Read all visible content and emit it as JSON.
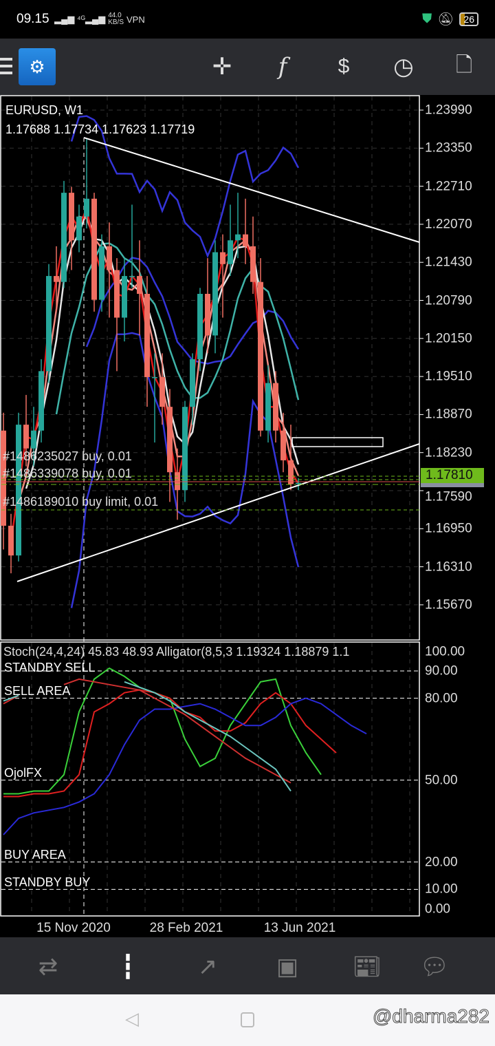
{
  "status_bar": {
    "time": "09.15",
    "net_speed": "44.0",
    "net_unit": "KB/S",
    "vpn": "VPN",
    "battery": "26"
  },
  "toolbar": {
    "icons": [
      "menu-icon",
      "app-logo",
      "crosshair-icon",
      "indicators-icon",
      "trade-icon",
      "timeframe-clock-icon",
      "new-order-icon"
    ]
  },
  "chart": {
    "symbol": "EURUSD, W1",
    "ohlc": "1.17688 1.17734 1.17623 1.17719",
    "price_ticks": [
      "1.23990",
      "1.23350",
      "1.22710",
      "1.22070",
      "1.21430",
      "1.20790",
      "1.20150",
      "1.19510",
      "1.18870",
      "1.18230",
      "1.17590",
      "1.16950",
      "1.16310",
      "1.15670"
    ],
    "current_price": "1.17810",
    "orders": [
      "#1486235027 buy, 0.01",
      "#1486339078 buy, 0.01",
      "#1486189010 buy limit, 0.01"
    ],
    "date_ticks": [
      "15 Nov 2020",
      "28 Feb 2021",
      "13 Jun 2021"
    ],
    "colors": {
      "bull": "#26a69a",
      "bear": "#ef6f62",
      "current_price": "#6fba1c"
    }
  },
  "chart_data": {
    "type": "candlestick",
    "timeframe": "W1",
    "candles": [
      [
        1.186,
        1.189,
        1.166,
        1.17
      ],
      [
        1.17,
        1.172,
        1.162,
        1.165
      ],
      [
        1.165,
        1.189,
        1.164,
        1.187
      ],
      [
        1.187,
        1.192,
        1.18,
        1.183
      ],
      [
        1.183,
        1.19,
        1.18,
        1.186
      ],
      [
        1.186,
        1.198,
        1.184,
        1.196
      ],
      [
        1.196,
        1.214,
        1.194,
        1.212
      ],
      [
        1.212,
        1.217,
        1.206,
        1.211
      ],
      [
        1.211,
        1.228,
        1.21,
        1.226
      ],
      [
        1.226,
        1.227,
        1.213,
        1.218
      ],
      [
        1.218,
        1.224,
        1.216,
        1.222
      ],
      [
        1.222,
        1.235,
        1.22,
        1.225
      ],
      [
        1.225,
        1.226,
        1.206,
        1.208
      ],
      [
        1.208,
        1.219,
        1.206,
        1.217
      ],
      [
        1.217,
        1.221,
        1.205,
        1.213
      ],
      [
        1.213,
        1.215,
        1.196,
        1.205
      ],
      [
        1.205,
        1.215,
        1.201,
        1.212
      ],
      [
        1.212,
        1.224,
        1.21,
        1.212
      ],
      [
        1.212,
        1.218,
        1.202,
        1.209
      ],
      [
        1.209,
        1.212,
        1.19,
        1.195
      ],
      [
        1.195,
        1.199,
        1.184,
        1.195
      ],
      [
        1.195,
        1.199,
        1.187,
        1.19
      ],
      [
        1.19,
        1.193,
        1.174,
        1.179
      ],
      [
        1.179,
        1.183,
        1.171,
        1.176
      ],
      [
        1.176,
        1.191,
        1.174,
        1.19
      ],
      [
        1.19,
        1.199,
        1.187,
        1.198
      ],
      [
        1.198,
        1.21,
        1.196,
        1.209
      ],
      [
        1.209,
        1.215,
        1.199,
        1.202
      ],
      [
        1.202,
        1.218,
        1.199,
        1.216
      ],
      [
        1.216,
        1.219,
        1.205,
        1.214
      ],
      [
        1.214,
        1.224,
        1.212,
        1.218
      ],
      [
        1.218,
        1.226,
        1.215,
        1.219
      ],
      [
        1.219,
        1.225,
        1.214,
        1.217
      ],
      [
        1.217,
        1.222,
        1.209,
        1.211
      ],
      [
        1.211,
        1.215,
        1.185,
        1.186
      ],
      [
        1.186,
        1.197,
        1.184,
        1.194
      ],
      [
        1.194,
        1.196,
        1.184,
        1.186
      ],
      [
        1.186,
        1.189,
        1.179,
        1.181
      ],
      [
        1.181,
        1.187,
        1.176,
        1.177
      ],
      [
        1.177,
        1.178,
        1.176,
        1.1772
      ]
    ],
    "y_range": [
      1.152,
      1.243
    ],
    "stochastic": {
      "label": "Stoch(24,4,24) 45.83 48.93 Alligator(8,5,3 1.19324 1.18879 1.1",
      "levels": [
        90,
        80,
        50,
        20,
        10
      ],
      "ticks": [
        "100.00",
        "90.00",
        "80.00",
        "50.00",
        "20.00",
        "10.00",
        "0.00"
      ],
      "zones": [
        "STANDBY SELL",
        "SELL AREA",
        "OjolFX",
        "BUY AREA",
        "STANDBY BUY"
      ],
      "series": [
        {
          "color": "#3ad13a",
          "values": [
            45,
            45,
            46,
            46,
            52,
            75,
            87,
            91,
            88,
            84,
            82,
            80,
            65,
            55,
            58,
            70,
            78,
            86,
            87,
            70,
            60,
            52
          ]
        },
        {
          "color": "#e02020",
          "values": [
            44,
            44,
            45,
            45,
            46,
            52,
            75,
            78,
            82,
            83,
            82,
            80,
            75,
            73,
            68,
            68,
            71,
            78,
            82,
            78,
            70,
            65,
            60
          ]
        },
        {
          "color": "#2a2ad8",
          "values": [
            30,
            36,
            38,
            39,
            40,
            42,
            45,
            52,
            63,
            72,
            76,
            76,
            77,
            78,
            76,
            73,
            70,
            70,
            73,
            78,
            80,
            78,
            74,
            70,
            67
          ]
        },
        {
          "color": "#d03030",
          "values": [
            78,
            81,
            null,
            null,
            85,
            87,
            86,
            85,
            84,
            83,
            80,
            77,
            74,
            70,
            66,
            62,
            58,
            55,
            52,
            49
          ]
        },
        {
          "color": "#6cc6c0",
          "values": [
            79,
            81,
            null,
            null,
            null,
            null,
            null,
            null,
            86,
            84,
            82,
            79,
            75,
            72,
            69,
            66,
            62,
            58,
            54,
            46
          ]
        }
      ]
    }
  },
  "bottom_nav": {
    "items": [
      "quotes-icon",
      "chart-icon",
      "trade-icon",
      "history-icon",
      "news-icon",
      "messages-icon"
    ],
    "active": 1
  },
  "watermark": "@dharma282"
}
